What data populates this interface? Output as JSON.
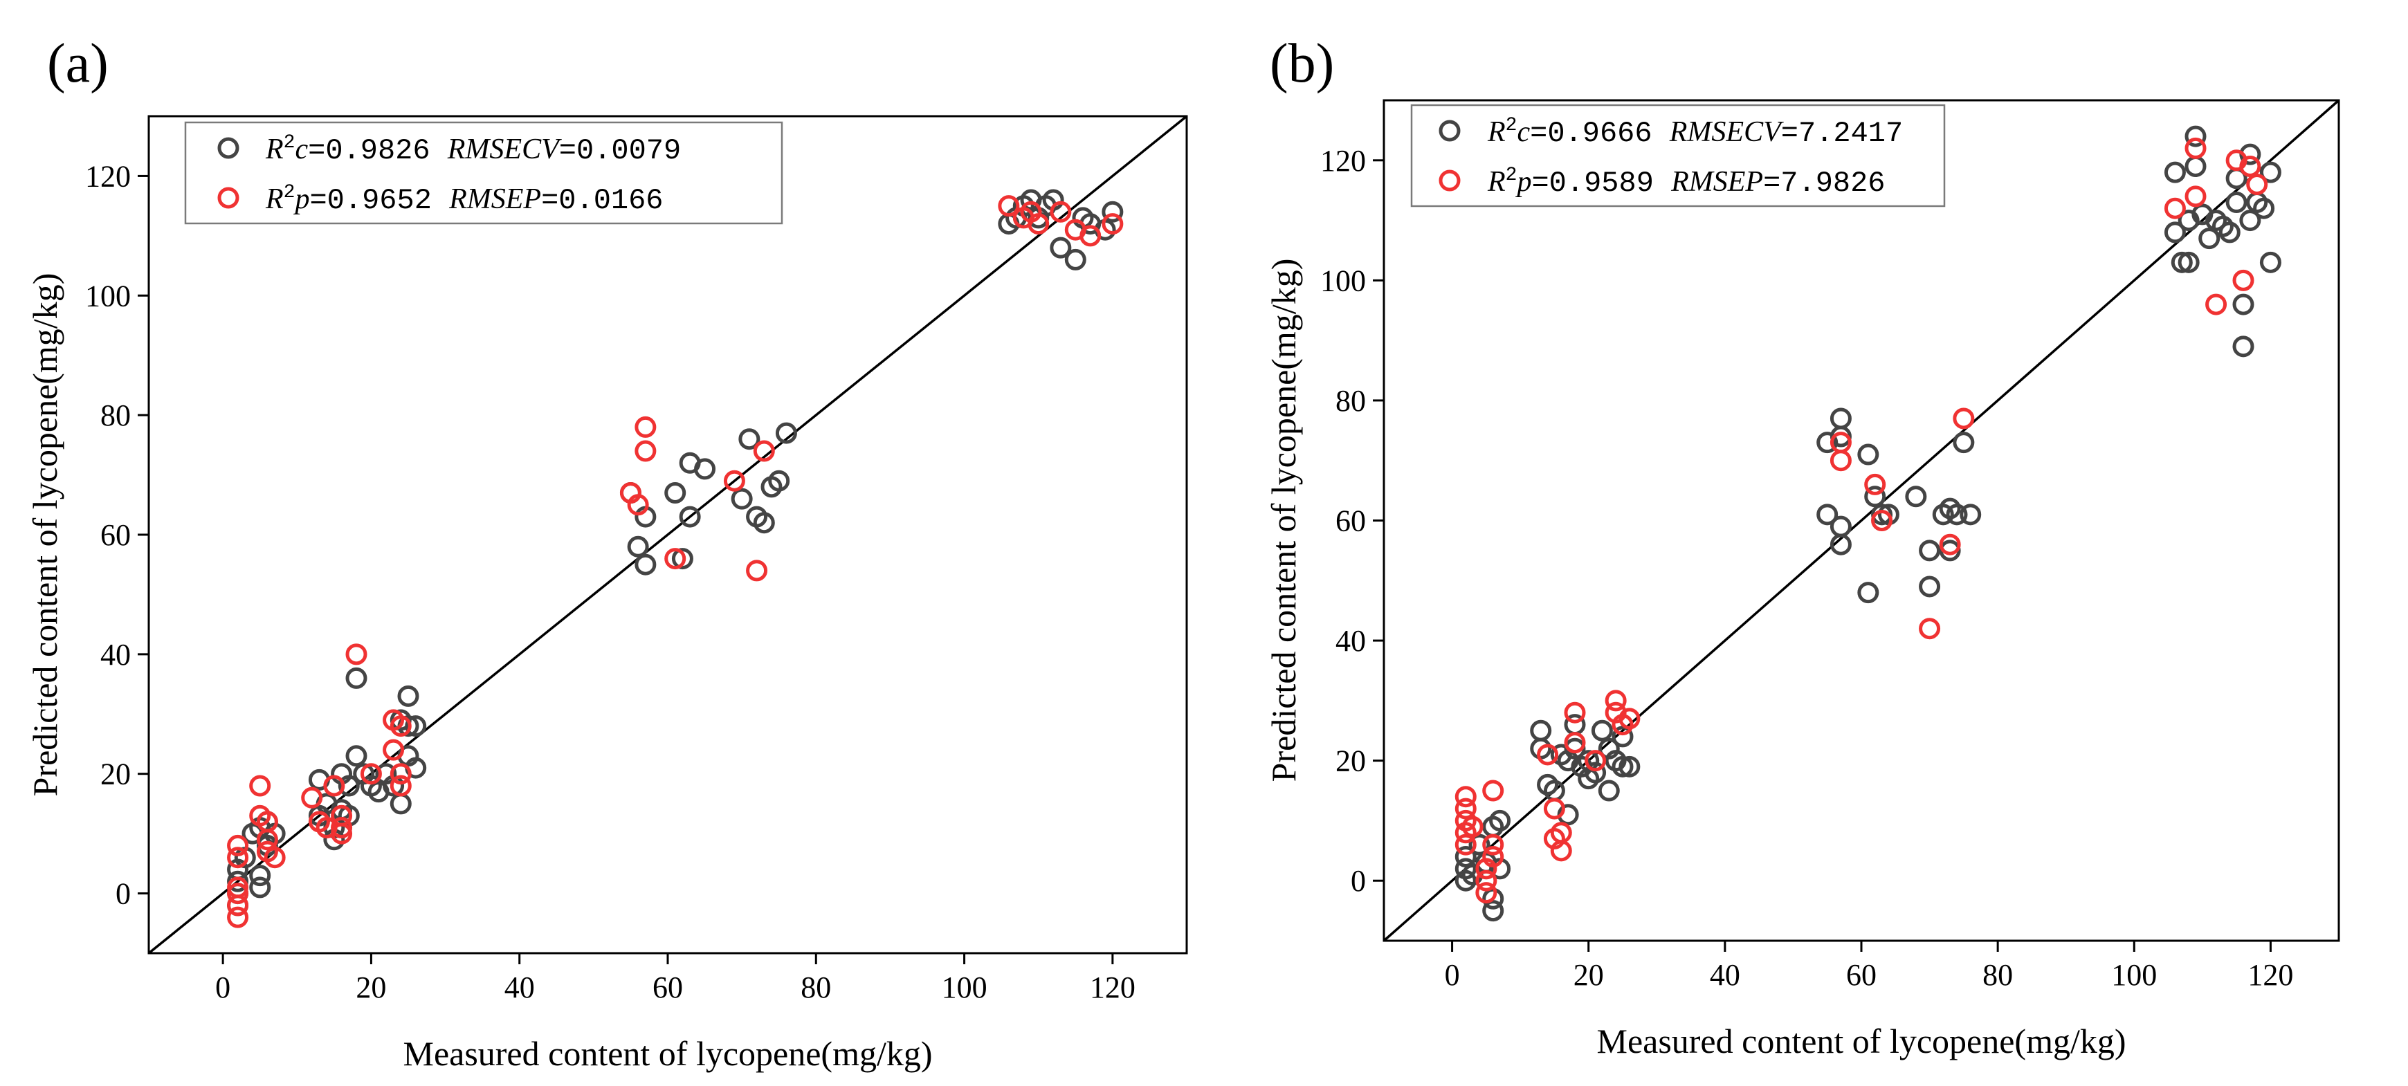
{
  "colors": {
    "calibration": "#444444",
    "prediction": "#f03232",
    "axis": "#000000"
  },
  "chart_data": [
    {
      "type": "scatter",
      "panel": "(a)",
      "xlabel": "Measured content of lycopene(mg/kg)",
      "ylabel": "Predicted content of lycopene(mg/kg)",
      "xlim": [
        -10,
        130
      ],
      "ylim": [
        -10,
        130
      ],
      "xticks": [
        0,
        20,
        40,
        60,
        80,
        100,
        120
      ],
      "yticks": [
        0,
        20,
        40,
        60,
        80,
        100,
        120
      ],
      "reference_line": "y = x",
      "legend_position": "top-left",
      "legend": [
        {
          "series": "calibration",
          "r2_label": "R",
          "r2_sup": "2",
          "r2_sub": "c",
          "r2_value": "=0.9826",
          "err_label": "RMSECV",
          "err_value": "=0.0079"
        },
        {
          "series": "prediction",
          "r2_label": "R",
          "r2_sup": "2",
          "r2_sub": "p",
          "r2_value": "=0.9652",
          "err_label": "RMSEP",
          "err_value": "=0.0166"
        }
      ],
      "series": [
        {
          "name": "calibration",
          "color": "#444444",
          "points": [
            [
              2,
              4
            ],
            [
              2,
              2
            ],
            [
              2,
              0
            ],
            [
              2,
              -2
            ],
            [
              3,
              6
            ],
            [
              4,
              10
            ],
            [
              5,
              11
            ],
            [
              5,
              1
            ],
            [
              5,
              3
            ],
            [
              6,
              8
            ],
            [
              6,
              12
            ],
            [
              7,
              10
            ],
            [
              13,
              19
            ],
            [
              13,
              13
            ],
            [
              14,
              15
            ],
            [
              15,
              9
            ],
            [
              15,
              11
            ],
            [
              16,
              14
            ],
            [
              16,
              20
            ],
            [
              17,
              13
            ],
            [
              17,
              18
            ],
            [
              18,
              23
            ],
            [
              18,
              36
            ],
            [
              19,
              20
            ],
            [
              20,
              18
            ],
            [
              21,
              17
            ],
            [
              22,
              20
            ],
            [
              23,
              18
            ],
            [
              24,
              15
            ],
            [
              24,
              29
            ],
            [
              25,
              33
            ],
            [
              25,
              28
            ],
            [
              25,
              23
            ],
            [
              26,
              21
            ],
            [
              26,
              28
            ],
            [
              55,
              67
            ],
            [
              56,
              58
            ],
            [
              57,
              55
            ],
            [
              57,
              63
            ],
            [
              61,
              67
            ],
            [
              62,
              56
            ],
            [
              63,
              63
            ],
            [
              63,
              72
            ],
            [
              65,
              71
            ],
            [
              70,
              66
            ],
            [
              71,
              76
            ],
            [
              72,
              63
            ],
            [
              73,
              62
            ],
            [
              74,
              68
            ],
            [
              75,
              69
            ],
            [
              76,
              77
            ],
            [
              106,
              112
            ],
            [
              107,
              113
            ],
            [
              108,
              115
            ],
            [
              109,
              116
            ],
            [
              110,
              113
            ],
            [
              111,
              115
            ],
            [
              112,
              116
            ],
            [
              113,
              108
            ],
            [
              115,
              106
            ],
            [
              116,
              113
            ],
            [
              117,
              112
            ],
            [
              119,
              111
            ],
            [
              120,
              114
            ]
          ]
        },
        {
          "name": "prediction",
          "color": "#f03232",
          "points": [
            [
              2,
              8
            ],
            [
              2,
              6
            ],
            [
              2,
              1
            ],
            [
              2,
              0
            ],
            [
              2,
              -2
            ],
            [
              2,
              -4
            ],
            [
              5,
              18
            ],
            [
              5,
              13
            ],
            [
              6,
              12
            ],
            [
              6,
              9
            ],
            [
              6,
              7
            ],
            [
              7,
              6
            ],
            [
              12,
              16
            ],
            [
              13,
              12
            ],
            [
              14,
              11
            ],
            [
              15,
              18
            ],
            [
              16,
              13
            ],
            [
              16,
              11
            ],
            [
              16,
              10
            ],
            [
              18,
              40
            ],
            [
              20,
              20
            ],
            [
              23,
              29
            ],
            [
              23,
              24
            ],
            [
              24,
              20
            ],
            [
              24,
              18
            ],
            [
              24,
              28
            ],
            [
              55,
              67
            ],
            [
              56,
              65
            ],
            [
              57,
              78
            ],
            [
              57,
              74
            ],
            [
              61,
              56
            ],
            [
              69,
              69
            ],
            [
              72,
              54
            ],
            [
              73,
              74
            ],
            [
              106,
              115
            ],
            [
              108,
              113
            ],
            [
              109,
              114
            ],
            [
              110,
              112
            ],
            [
              113,
              114
            ],
            [
              115,
              111
            ],
            [
              117,
              110
            ],
            [
              120,
              112
            ]
          ]
        }
      ]
    },
    {
      "type": "scatter",
      "panel": "(b)",
      "xlabel": "Measured content of lycopene(mg/kg)",
      "ylabel": "Predicted content of lycopene(mg/kg)",
      "xlim": [
        -10,
        130
      ],
      "ylim": [
        -10,
        130
      ],
      "xticks": [
        0,
        20,
        40,
        60,
        80,
        100,
        120
      ],
      "yticks": [
        0,
        20,
        40,
        60,
        80,
        100,
        120
      ],
      "reference_line": "y = x",
      "legend_position": "top-left",
      "legend": [
        {
          "series": "calibration",
          "r2_label": "R",
          "r2_sup": "2",
          "r2_sub": "c",
          "r2_value": "=0.9666",
          "err_label": "RMSECV",
          "err_value": "=7.2417"
        },
        {
          "series": "prediction",
          "r2_label": "R",
          "r2_sup": "2",
          "r2_sub": "p",
          "r2_value": "=0.9589",
          "err_label": "RMSEP",
          "err_value": "=7.9826"
        }
      ],
      "series": [
        {
          "name": "calibration",
          "color": "#444444",
          "points": [
            [
              2,
              2
            ],
            [
              2,
              0
            ],
            [
              2,
              4
            ],
            [
              3,
              1
            ],
            [
              4,
              6
            ],
            [
              5,
              3
            ],
            [
              6,
              9
            ],
            [
              6,
              -3
            ],
            [
              6,
              -5
            ],
            [
              7,
              2
            ],
            [
              7,
              10
            ],
            [
              13,
              25
            ],
            [
              13,
              22
            ],
            [
              14,
              16
            ],
            [
              15,
              15
            ],
            [
              16,
              21
            ],
            [
              17,
              20
            ],
            [
              17,
              11
            ],
            [
              18,
              26
            ],
            [
              18,
              22
            ],
            [
              19,
              19
            ],
            [
              20,
              20
            ],
            [
              20,
              17
            ],
            [
              21,
              18
            ],
            [
              22,
              25
            ],
            [
              23,
              22
            ],
            [
              23,
              15
            ],
            [
              24,
              20
            ],
            [
              25,
              19
            ],
            [
              25,
              24
            ],
            [
              26,
              19
            ],
            [
              55,
              73
            ],
            [
              55,
              61
            ],
            [
              57,
              56
            ],
            [
              57,
              59
            ],
            [
              57,
              74
            ],
            [
              57,
              77
            ],
            [
              61,
              71
            ],
            [
              61,
              48
            ],
            [
              62,
              64
            ],
            [
              63,
              61
            ],
            [
              64,
              61
            ],
            [
              68,
              64
            ],
            [
              70,
              49
            ],
            [
              70,
              55
            ],
            [
              72,
              61
            ],
            [
              73,
              55
            ],
            [
              73,
              62
            ],
            [
              74,
              61
            ],
            [
              75,
              73
            ],
            [
              76,
              61
            ],
            [
              106,
              118
            ],
            [
              106,
              108
            ],
            [
              107,
              103
            ],
            [
              108,
              103
            ],
            [
              108,
              110
            ],
            [
              109,
              124
            ],
            [
              109,
              119
            ],
            [
              110,
              111
            ],
            [
              111,
              107
            ],
            [
              112,
              110
            ],
            [
              113,
              109
            ],
            [
              114,
              108
            ],
            [
              115,
              113
            ],
            [
              115,
              117
            ],
            [
              116,
              96
            ],
            [
              116,
              89
            ],
            [
              117,
              110
            ],
            [
              117,
              121
            ],
            [
              118,
              113
            ],
            [
              119,
              112
            ],
            [
              120,
              118
            ],
            [
              120,
              103
            ]
          ]
        },
        {
          "name": "prediction",
          "color": "#f03232",
          "points": [
            [
              2,
              14
            ],
            [
              2,
              12
            ],
            [
              2,
              10
            ],
            [
              2,
              8
            ],
            [
              2,
              6
            ],
            [
              3,
              9
            ],
            [
              5,
              0
            ],
            [
              5,
              -2
            ],
            [
              5,
              2
            ],
            [
              6,
              6
            ],
            [
              6,
              15
            ],
            [
              6,
              4
            ],
            [
              14,
              21
            ],
            [
              15,
              7
            ],
            [
              15,
              12
            ],
            [
              16,
              5
            ],
            [
              16,
              8
            ],
            [
              18,
              28
            ],
            [
              18,
              23
            ],
            [
              21,
              20
            ],
            [
              24,
              30
            ],
            [
              24,
              28
            ],
            [
              25,
              26
            ],
            [
              26,
              27
            ],
            [
              57,
              73
            ],
            [
              57,
              70
            ],
            [
              62,
              66
            ],
            [
              63,
              60
            ],
            [
              70,
              42
            ],
            [
              73,
              56
            ],
            [
              75,
              77
            ],
            [
              106,
              112
            ],
            [
              109,
              114
            ],
            [
              109,
              122
            ],
            [
              112,
              96
            ],
            [
              115,
              120
            ],
            [
              116,
              100
            ],
            [
              117,
              119
            ],
            [
              118,
              116
            ]
          ]
        }
      ]
    }
  ]
}
